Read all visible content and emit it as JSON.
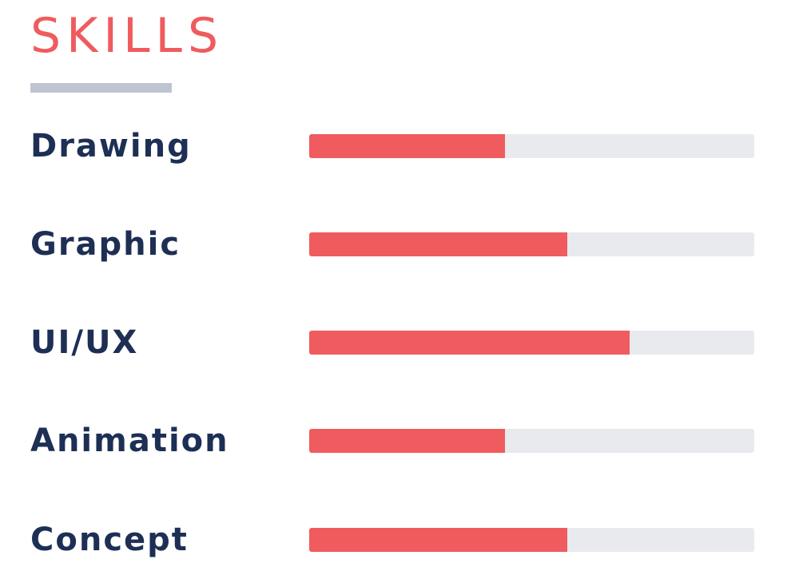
{
  "section": {
    "title": "SKILLS"
  },
  "colors": {
    "title": "#ef5b5e",
    "underline": "#bfc5d0",
    "label": "#1e2f55",
    "bar_fill": "#ef5b5e",
    "bar_track": "#e8eaed"
  },
  "skills": [
    {
      "name": "Drawing",
      "level_percent": 44
    },
    {
      "name": "Graphic",
      "level_percent": 58
    },
    {
      "name": "UI/UX",
      "level_percent": 72
    },
    {
      "name": "Animation",
      "level_percent": 44
    },
    {
      "name": "Concept",
      "level_percent": 58
    }
  ]
}
